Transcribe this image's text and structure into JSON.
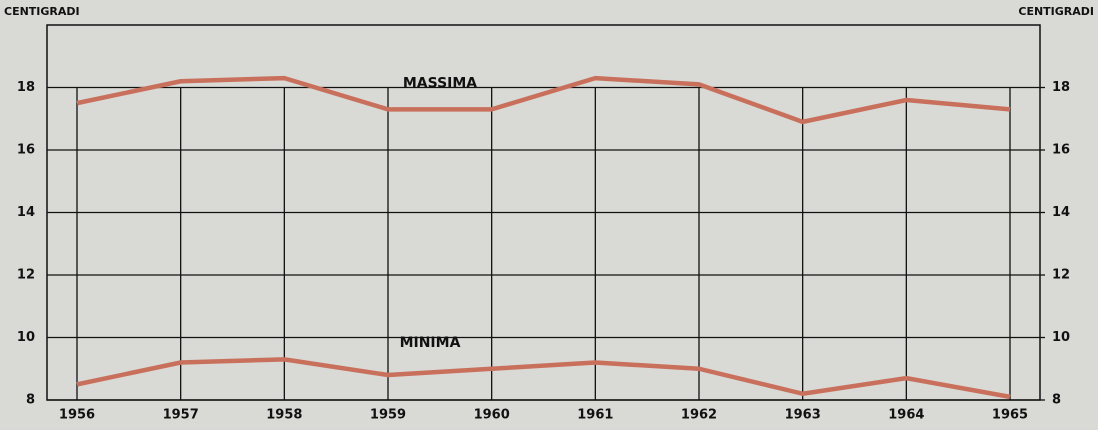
{
  "chart_data": {
    "type": "line",
    "y_axis_label": "CENTIGRADI",
    "y2_axis_label": "CENTIGRADI",
    "categories": [
      "1956",
      "1957",
      "1958",
      "1959",
      "1960",
      "1961",
      "1962",
      "1963",
      "1964",
      "1965"
    ],
    "series": [
      {
        "name": "MASSIMA",
        "color": "#c9705c",
        "values": [
          17.5,
          18.2,
          18.3,
          17.3,
          17.3,
          18.3,
          18.1,
          16.9,
          17.6,
          17.3
        ]
      },
      {
        "name": "MINIMA",
        "color": "#c9705c",
        "values": [
          8.5,
          9.2,
          9.3,
          8.8,
          9.0,
          9.2,
          9.0,
          8.2,
          8.7,
          8.1
        ]
      }
    ],
    "ylim": [
      8,
      20
    ],
    "yticks": [
      8,
      10,
      12,
      14,
      16,
      18
    ],
    "y2lim": [
      8,
      20
    ],
    "y2ticks": [
      8,
      10,
      12,
      14,
      16,
      18
    ],
    "grid": true
  }
}
